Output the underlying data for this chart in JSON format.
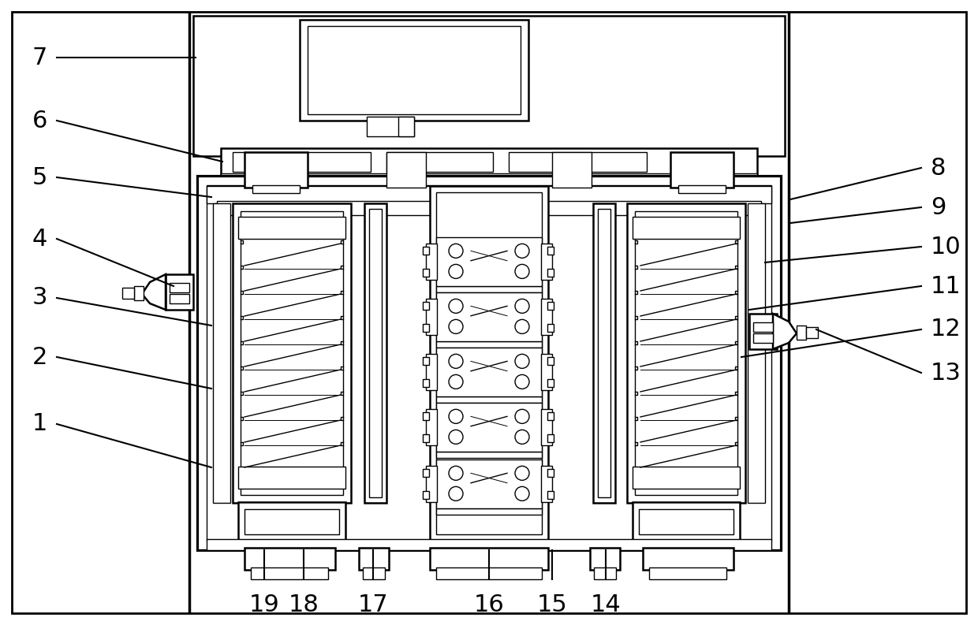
{
  "bg_color": "#ffffff",
  "line_color": "#000000",
  "lw": 1.8,
  "tlw": 1.0,
  "fig_width": 12.4,
  "fig_height": 7.93,
  "dpi": 100
}
